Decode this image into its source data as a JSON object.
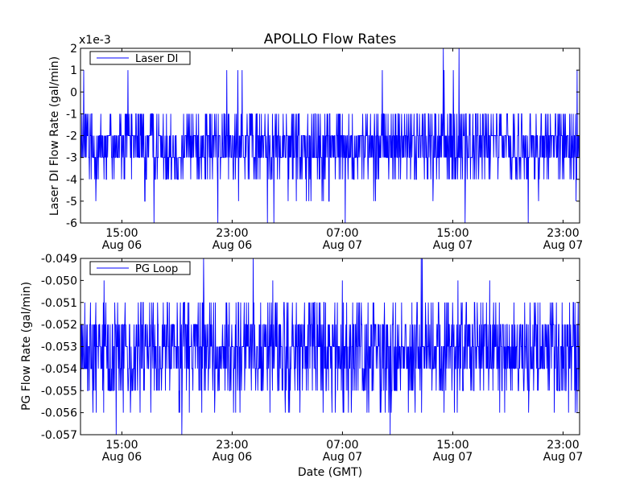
{
  "figure": {
    "title": "APOLLO Flow Rates",
    "xlabel": "Date (GMT)"
  },
  "colors": {
    "series": "#0000ff",
    "background": "#ffffff",
    "axes": "#000000"
  },
  "chart_data": [
    {
      "type": "line",
      "title": "APOLLO Flow Rates",
      "ylabel": "Laser DI Flow Rate (gal/min)",
      "offset_label": "x1e-3",
      "ylim": [
        -6,
        2
      ],
      "yticks": [
        -6,
        -5,
        -4,
        -3,
        -2,
        -1,
        0,
        1,
        2
      ],
      "yticklabels": [
        "-6",
        "-5",
        "-4",
        "-3",
        "-2",
        "-1",
        "0",
        "1",
        "2"
      ],
      "xlim_hours": [
        0,
        36.2
      ],
      "xticks_hours": [
        3,
        11,
        19,
        27,
        35
      ],
      "xticklabels": [
        [
          "15:00",
          "Aug 06"
        ],
        [
          "23:00",
          "Aug 06"
        ],
        [
          "07:00",
          "Aug 07"
        ],
        [
          "15:00",
          "Aug 07"
        ],
        [
          "23:00",
          "Aug 07"
        ]
      ],
      "legend": {
        "label": "Laser DI",
        "loc": "upper-left"
      },
      "series": [
        {
          "name": "Laser DI",
          "typical_range": [
            -4,
            -1
          ],
          "center": -2.4,
          "outlier_min": -6,
          "outlier_max": 2,
          "note": "quantized noisy signal (step 1e-3 gal/min) sampled continuously from ~12:00 Aug 06 to ~00:10 Aug 08"
        }
      ]
    },
    {
      "type": "line",
      "title": "",
      "ylabel": "PG Flow Rate (gal/min)",
      "xlabel": "Date (GMT)",
      "ylim": [
        -0.057,
        -0.049
      ],
      "yticks": [
        -0.057,
        -0.056,
        -0.055,
        -0.054,
        -0.053,
        -0.052,
        -0.051,
        -0.05,
        -0.049
      ],
      "yticklabels": [
        "-0.057",
        "-0.056",
        "-0.055",
        "-0.054",
        "-0.053",
        "-0.052",
        "-0.051",
        "-0.050",
        "-0.049"
      ],
      "xlim_hours": [
        0,
        36.2
      ],
      "xticks_hours": [
        3,
        11,
        19,
        27,
        35
      ],
      "xticklabels": [
        [
          "15:00",
          "Aug 06"
        ],
        [
          "23:00",
          "Aug 06"
        ],
        [
          "07:00",
          "Aug 07"
        ],
        [
          "15:00",
          "Aug 07"
        ],
        [
          "23:00",
          "Aug 07"
        ]
      ],
      "legend": {
        "label": "PG Loop",
        "loc": "upper-left"
      },
      "series": [
        {
          "name": "PG Loop",
          "typical_range": [
            -0.055,
            -0.051
          ],
          "center": -0.0532,
          "outlier_min": -0.057,
          "outlier_max": -0.049,
          "note": "quantized noisy signal (step 0.001 gal/min)"
        }
      ]
    }
  ]
}
